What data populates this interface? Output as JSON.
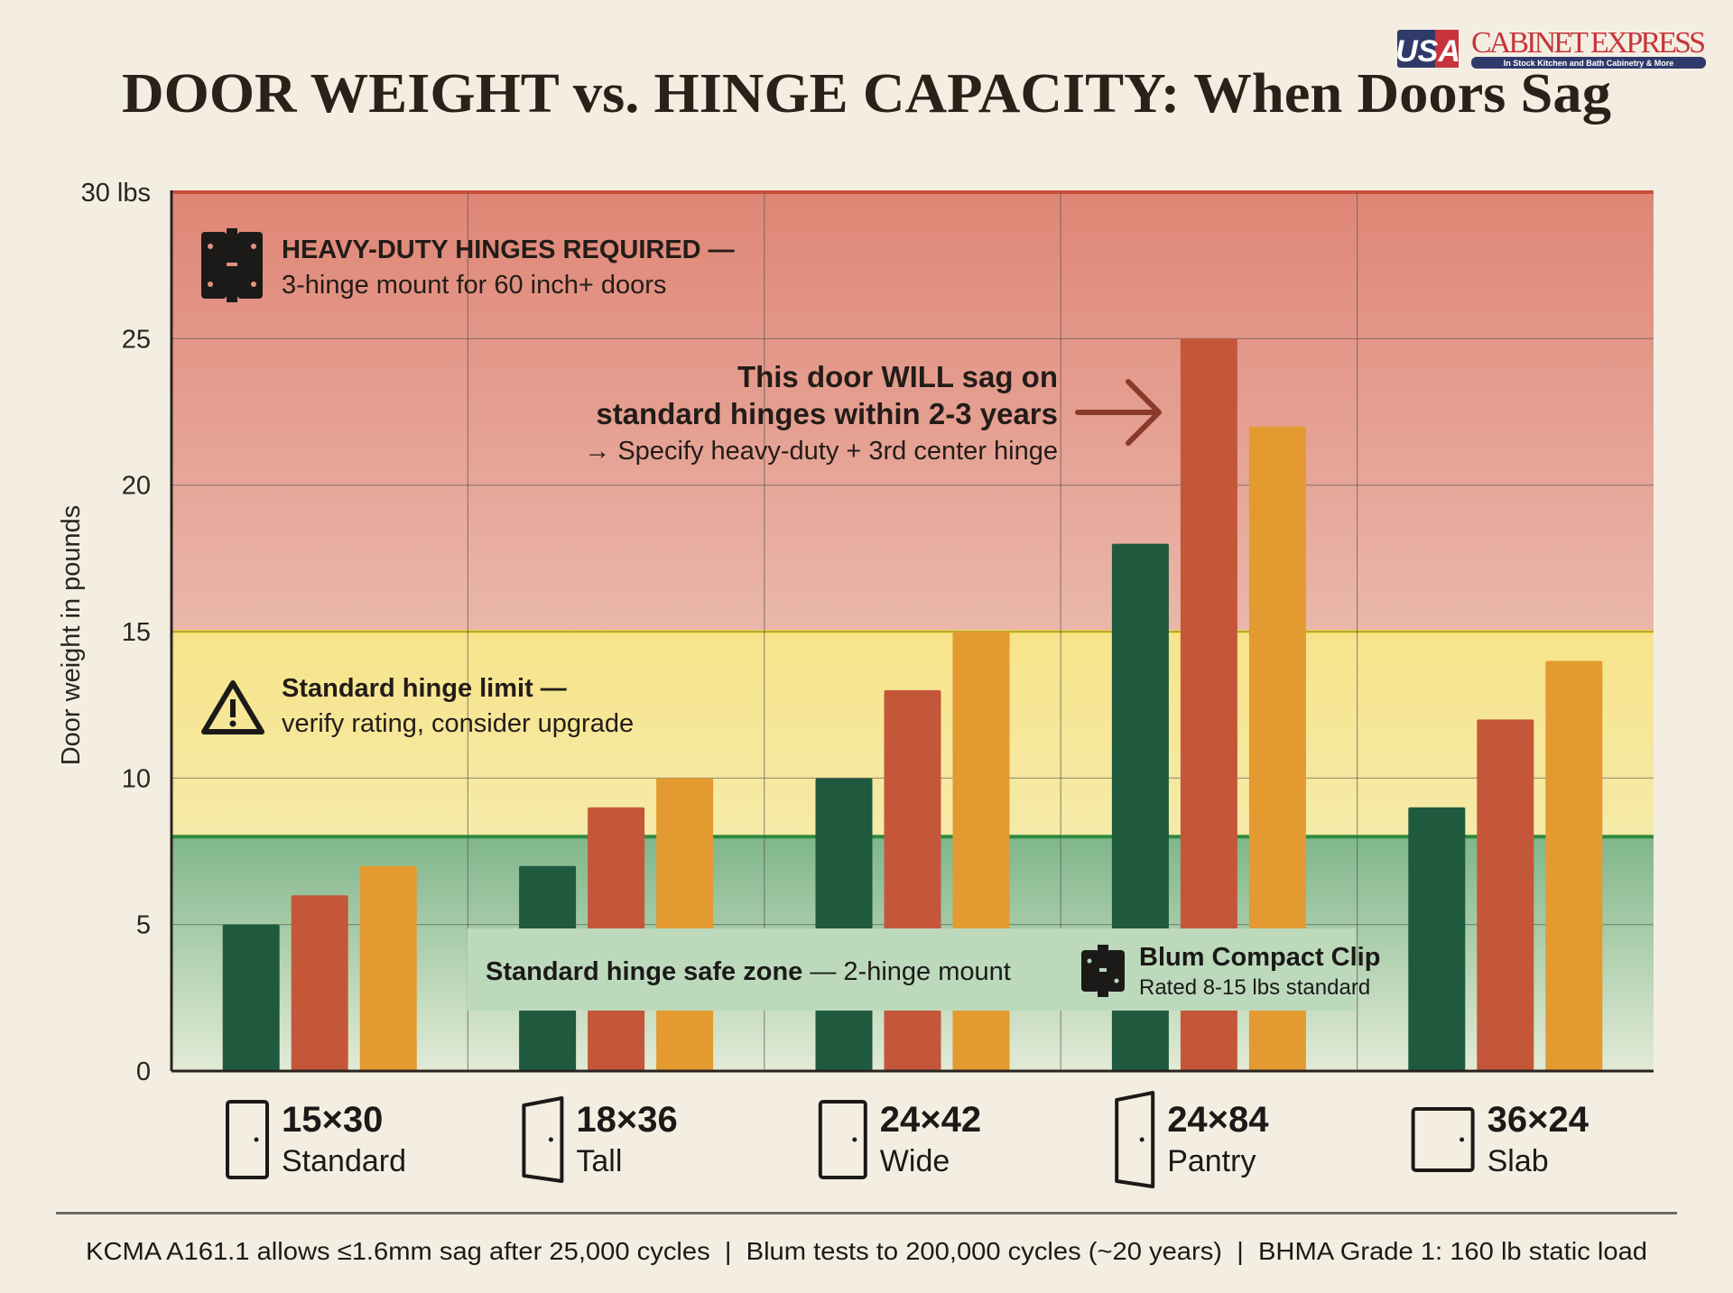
{
  "logo": {
    "text": "CABINET EXPRESS",
    "mark": "USA",
    "tagline": "In Stock Kitchen and Bath Cabinetry & More"
  },
  "chart_data": {
    "type": "bar",
    "title": "DOOR WEIGHT vs. HINGE CAPACITY: When Doors Sag",
    "ylabel": "Door weight in pounds",
    "ylim": [
      0,
      30
    ],
    "yticks": [
      "0",
      "5",
      "10",
      "15",
      "20",
      "25",
      "30 lbs"
    ],
    "grid": true,
    "categories": [
      {
        "size": "15×30",
        "name": "Standard",
        "icon": "door-icon"
      },
      {
        "size": "18×36",
        "name": "Tall",
        "icon": "door-open-icon"
      },
      {
        "size": "24×42",
        "name": "Wide",
        "icon": "door-icon"
      },
      {
        "size": "24×84",
        "name": "Pantry",
        "icon": "door-open-icon"
      },
      {
        "size": "36×24",
        "name": "Slab",
        "icon": "door-icon"
      }
    ],
    "series": [
      {
        "color": "#1f5a3e",
        "values": [
          5,
          7,
          10,
          18,
          9
        ]
      },
      {
        "color": "#c4573a",
        "values": [
          6,
          9,
          13,
          25,
          12
        ]
      },
      {
        "color": "#e39a30",
        "values": [
          7,
          10,
          15,
          22,
          14
        ]
      }
    ],
    "zones": [
      {
        "from": 0,
        "to": 8,
        "color": "#8fc29a",
        "label": "Standard hinge safe zone",
        "sub": "— 2-hinge mount"
      },
      {
        "from": 8,
        "to": 15,
        "color": "#f6e795",
        "label": "Standard hinge limit —",
        "sub": "verify rating, consider upgrade",
        "icon": "warning-icon"
      },
      {
        "from": 15,
        "to": 30,
        "color": "#e69282",
        "label": "HEAVY-DUTY HINGES REQUIRED —",
        "sub": "3-hinge mount for 60 inch+ doors",
        "icon": "hinge-icon"
      }
    ],
    "annotations": {
      "sag": [
        "This door WILL sag on",
        "standard hinges within 2-3 years",
        "→ Specify heavy-duty + 3rd center hinge"
      ],
      "blum": {
        "title": "Blum Compact Clip",
        "sub": "Rated 8-15 lbs standard",
        "icon": "hinge-icon"
      }
    }
  },
  "footer": "KCMA A161.1 allows ≤1.6mm sag after 25,000 cycles  |  Blum tests to 200,000 cycles (~20 years)  |  BHMA Grade 1: 160 lb static load"
}
